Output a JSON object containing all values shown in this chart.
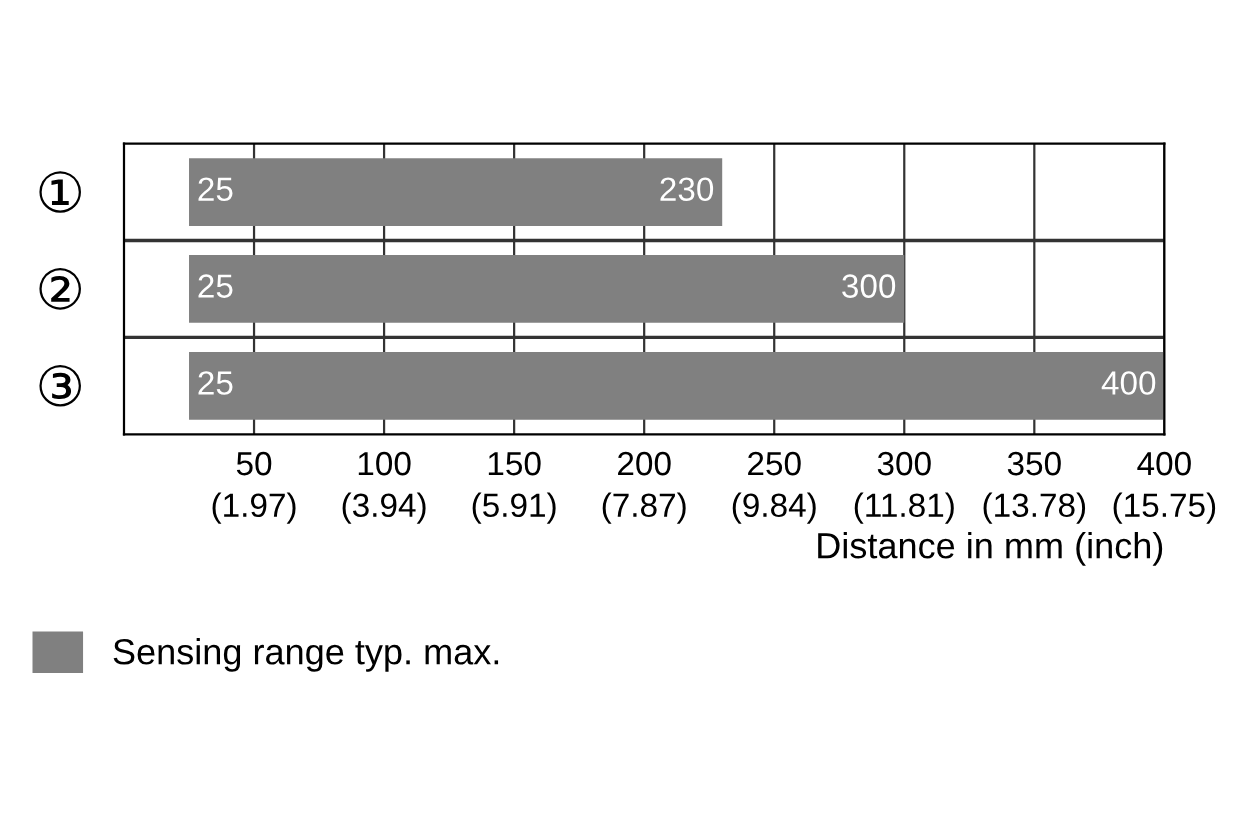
{
  "chart_data": {
    "type": "bar",
    "orientation": "horizontal",
    "categories": [
      "①",
      "②",
      "③"
    ],
    "series": [
      {
        "name": "Sensing range typ. max.",
        "color": "#808080",
        "base": [
          25,
          25,
          25
        ],
        "values": [
          205,
          275,
          375
        ]
      }
    ],
    "value_labels": [
      "230",
      "300",
      "400"
    ],
    "annotations": [
      "25",
      "25",
      "25",
      "(1.97)",
      "(3.94)",
      "(5.91)",
      "(7.87)",
      "(9.84)",
      "(11.81)",
      "(13.78)",
      "(15.75)"
    ],
    "xlabel": "Distance in mm (inch)",
    "xlim": [
      0,
      400
    ],
    "xticks": [
      50,
      100,
      150,
      200,
      250,
      300,
      350,
      400
    ],
    "grid": "x",
    "legend": "bottom left"
  }
}
